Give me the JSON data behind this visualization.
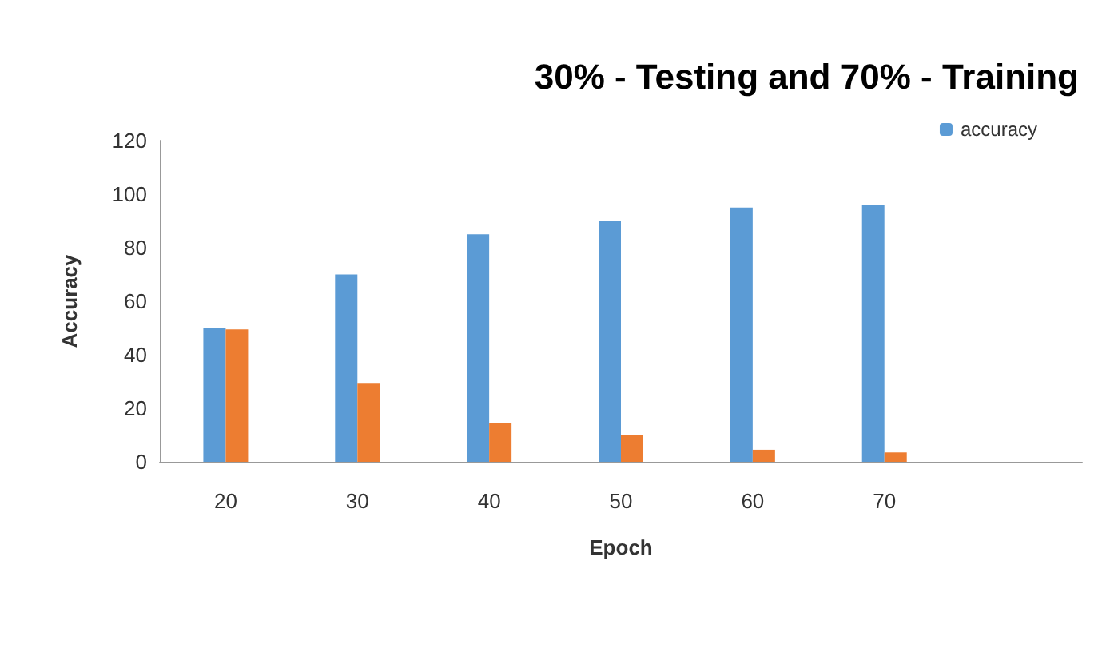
{
  "chart_data": {
    "type": "bar",
    "title": "30% - Testing and 70% - Training",
    "xlabel": "Epoch",
    "ylabel": "Accuracy",
    "categories": [
      "20",
      "30",
      "40",
      "50",
      "60",
      "70",
      null
    ],
    "series": [
      {
        "name": "accuracy",
        "color": "#5b9bd5",
        "values": [
          50,
          70,
          85,
          90,
          95,
          96,
          null
        ]
      },
      {
        "color": "#ed7d31",
        "values": [
          49.5,
          29.5,
          14.5,
          10,
          4.5,
          3.5,
          null
        ]
      }
    ],
    "ylim": [
      0,
      120
    ],
    "yticks": [
      0,
      20,
      40,
      60,
      80,
      100,
      120
    ],
    "grid": false,
    "legend": "top right"
  }
}
